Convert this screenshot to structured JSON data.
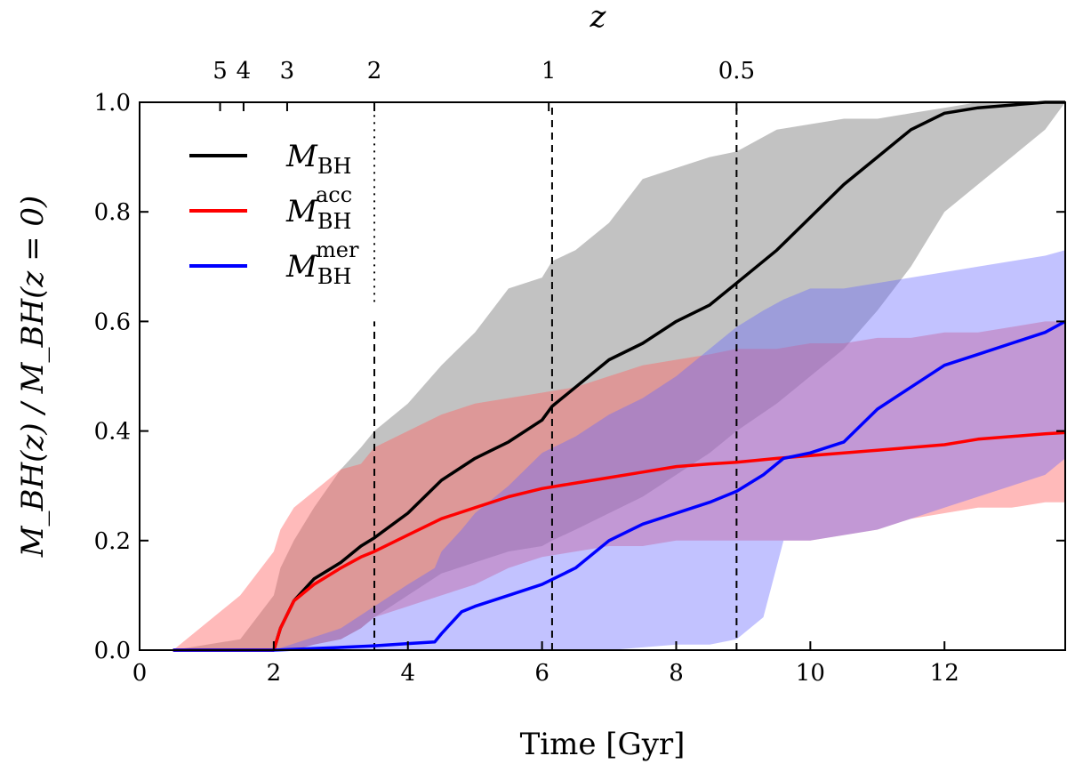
{
  "chart_data": {
    "type": "area",
    "xlabel": "Time [Gyr]",
    "ylabel": "M_BH(z) / M_BH(z = 0)",
    "top_axis_label": "z",
    "xlim": [
      0,
      13.8
    ],
    "ylim": [
      0,
      1.0
    ],
    "x_ticks": [
      0,
      2,
      4,
      6,
      8,
      10,
      12
    ],
    "y_ticks": [
      0.0,
      0.2,
      0.4,
      0.6,
      0.8,
      1.0
    ],
    "y_tick_labels": [
      "0.0",
      "0.2",
      "0.4",
      "0.6",
      "0.8",
      "1.0"
    ],
    "top_ticks": [
      {
        "label": "5",
        "time": 1.2
      },
      {
        "label": "4",
        "time": 1.55
      },
      {
        "label": "3",
        "time": 2.2
      },
      {
        "label": "2",
        "time": 3.5
      },
      {
        "label": "1",
        "time": 6.1
      },
      {
        "label": "0.5",
        "time": 8.9
      }
    ],
    "vlines": [
      {
        "time": 3.5,
        "ymax": 1.0,
        "ymin_dotted_above": 0.6
      },
      {
        "time": 6.15,
        "ymax": 1.0
      },
      {
        "time": 8.9,
        "ymax": 1.0
      }
    ],
    "legend_position": "top-left",
    "colors": {
      "total": "#000000",
      "acc": "#ff0000",
      "mer": "#0000ff",
      "total_band": "#999999",
      "acc_band": "#ff6666",
      "mer_band": "#6666ff"
    },
    "series": [
      {
        "name": "M_BH",
        "legend_main": "M",
        "legend_sub": "BH",
        "legend_sup": "",
        "color_key": "total",
        "x": [
          0.5,
          1.5,
          2.0,
          2.1,
          2.3,
          2.6,
          3.0,
          3.3,
          3.5,
          4.0,
          4.5,
          5.0,
          5.5,
          6.0,
          6.15,
          6.5,
          7.0,
          7.5,
          8.0,
          8.5,
          8.9,
          9.5,
          10.0,
          10.5,
          11.0,
          11.5,
          12.0,
          12.5,
          13.0,
          13.5,
          13.8
        ],
        "y": [
          0.0,
          0.0,
          0.0,
          0.04,
          0.09,
          0.13,
          0.16,
          0.19,
          0.205,
          0.25,
          0.31,
          0.35,
          0.38,
          0.42,
          0.445,
          0.48,
          0.53,
          0.56,
          0.6,
          0.63,
          0.67,
          0.73,
          0.79,
          0.85,
          0.9,
          0.95,
          0.98,
          0.99,
          0.995,
          1.0,
          1.0
        ],
        "lower": [
          0.0,
          0.0,
          0.0,
          0.0,
          0.0,
          0.01,
          0.02,
          0.04,
          0.06,
          0.1,
          0.14,
          0.16,
          0.18,
          0.19,
          0.2,
          0.22,
          0.25,
          0.28,
          0.32,
          0.36,
          0.4,
          0.45,
          0.5,
          0.55,
          0.62,
          0.7,
          0.8,
          0.85,
          0.9,
          0.95,
          1.0
        ],
        "upper": [
          0.0,
          0.02,
          0.1,
          0.15,
          0.2,
          0.26,
          0.33,
          0.37,
          0.4,
          0.45,
          0.52,
          0.58,
          0.66,
          0.68,
          0.71,
          0.73,
          0.78,
          0.86,
          0.88,
          0.9,
          0.91,
          0.95,
          0.96,
          0.97,
          0.97,
          0.98,
          0.99,
          1.0,
          1.0,
          1.0,
          1.0
        ]
      },
      {
        "name": "M_BH^acc",
        "legend_main": "M",
        "legend_sub": "BH",
        "legend_sup": "acc",
        "color_key": "acc",
        "x": [
          0.5,
          1.5,
          2.0,
          2.1,
          2.3,
          2.6,
          3.0,
          3.3,
          3.5,
          4.0,
          4.5,
          5.0,
          5.5,
          6.0,
          6.5,
          7.0,
          7.5,
          8.0,
          8.5,
          8.9,
          9.5,
          10.0,
          10.5,
          11.0,
          11.5,
          12.0,
          12.5,
          13.0,
          13.5,
          13.8
        ],
        "y": [
          0.0,
          0.0,
          0.0,
          0.04,
          0.09,
          0.12,
          0.15,
          0.17,
          0.18,
          0.21,
          0.24,
          0.26,
          0.28,
          0.295,
          0.305,
          0.315,
          0.325,
          0.335,
          0.34,
          0.343,
          0.35,
          0.355,
          0.36,
          0.365,
          0.37,
          0.375,
          0.385,
          0.39,
          0.395,
          0.397
        ],
        "lower": [
          0.0,
          0.0,
          0.0,
          0.0,
          0.0,
          0.01,
          0.02,
          0.04,
          0.06,
          0.08,
          0.1,
          0.12,
          0.15,
          0.17,
          0.18,
          0.19,
          0.19,
          0.2,
          0.2,
          0.2,
          0.2,
          0.2,
          0.21,
          0.22,
          0.24,
          0.25,
          0.26,
          0.26,
          0.27,
          0.27
        ],
        "upper": [
          0.0,
          0.1,
          0.18,
          0.22,
          0.26,
          0.29,
          0.33,
          0.34,
          0.37,
          0.4,
          0.43,
          0.45,
          0.46,
          0.47,
          0.48,
          0.5,
          0.52,
          0.53,
          0.54,
          0.55,
          0.55,
          0.56,
          0.56,
          0.57,
          0.57,
          0.58,
          0.58,
          0.59,
          0.6,
          0.6
        ]
      },
      {
        "name": "M_BH^mer",
        "legend_main": "M",
        "legend_sub": "BH",
        "legend_sup": "mer",
        "color_key": "mer",
        "x": [
          0.5,
          2.0,
          3.0,
          3.5,
          4.0,
          4.4,
          4.5,
          4.8,
          5.0,
          5.5,
          6.0,
          6.5,
          7.0,
          7.5,
          8.0,
          8.5,
          8.9,
          9.3,
          9.6,
          10.0,
          10.5,
          11.0,
          11.5,
          12.0,
          12.5,
          13.0,
          13.5,
          13.8
        ],
        "y": [
          0.0,
          0.0,
          0.005,
          0.008,
          0.012,
          0.015,
          0.03,
          0.07,
          0.08,
          0.1,
          0.12,
          0.15,
          0.2,
          0.23,
          0.25,
          0.27,
          0.29,
          0.32,
          0.35,
          0.36,
          0.38,
          0.44,
          0.48,
          0.52,
          0.54,
          0.56,
          0.58,
          0.6
        ],
        "lower": [
          0.0,
          0.0,
          0.0,
          0.0,
          0.0,
          0.0,
          0.0,
          0.0,
          0.0,
          0.0,
          0.0,
          0.0,
          0.0,
          0.005,
          0.01,
          0.01,
          0.02,
          0.06,
          0.2,
          0.2,
          0.21,
          0.22,
          0.24,
          0.26,
          0.28,
          0.3,
          0.32,
          0.35
        ],
        "upper": [
          0.0,
          0.0,
          0.04,
          0.08,
          0.12,
          0.15,
          0.18,
          0.22,
          0.25,
          0.3,
          0.36,
          0.39,
          0.43,
          0.46,
          0.5,
          0.55,
          0.59,
          0.62,
          0.64,
          0.66,
          0.66,
          0.67,
          0.68,
          0.69,
          0.7,
          0.71,
          0.72,
          0.73
        ]
      }
    ]
  }
}
